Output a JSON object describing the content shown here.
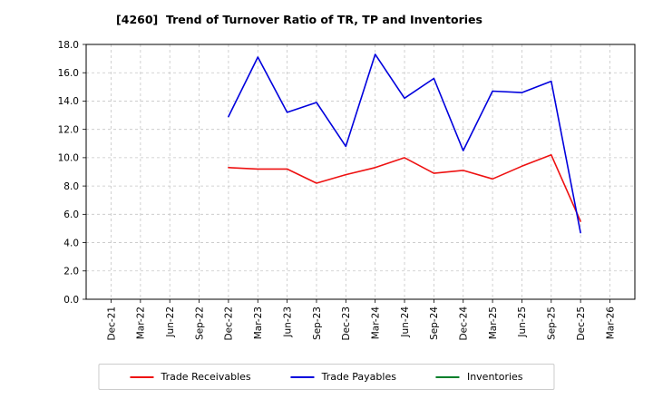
{
  "chart_data": {
    "type": "line",
    "title": "[4260]  Trend of Turnover Ratio of TR, TP and Inventories",
    "xlabel": "",
    "ylabel": "",
    "ylim": [
      0.0,
      18.0
    ],
    "ytick_step": 2.0,
    "grid": true,
    "grid_style": "dashed",
    "legend_position": "bottom",
    "categories": [
      "Dec-21",
      "Mar-22",
      "Jun-22",
      "Sep-22",
      "Dec-22",
      "Mar-23",
      "Jun-23",
      "Sep-23",
      "Dec-23",
      "Mar-24",
      "Jun-24",
      "Sep-24",
      "Dec-24",
      "Mar-25",
      "Jun-25",
      "Sep-25",
      "Dec-25",
      "Mar-26"
    ],
    "series": [
      {
        "name": "Trade Receivables",
        "color": "#ee1111",
        "values": [
          null,
          null,
          null,
          null,
          9.3,
          9.2,
          9.2,
          8.2,
          8.8,
          9.3,
          10.0,
          8.9,
          9.1,
          8.5,
          9.4,
          10.2,
          5.5,
          null
        ]
      },
      {
        "name": "Trade Payables",
        "color": "#0000dd",
        "values": [
          null,
          null,
          null,
          null,
          12.9,
          17.1,
          13.2,
          13.9,
          10.8,
          17.3,
          14.2,
          15.6,
          10.5,
          14.7,
          14.6,
          15.4,
          4.7,
          null
        ]
      },
      {
        "name": "Inventories",
        "color": "#007f2a",
        "values": [
          null,
          null,
          null,
          null,
          null,
          null,
          null,
          null,
          null,
          null,
          null,
          null,
          null,
          null,
          null,
          null,
          null,
          null
        ]
      }
    ]
  }
}
